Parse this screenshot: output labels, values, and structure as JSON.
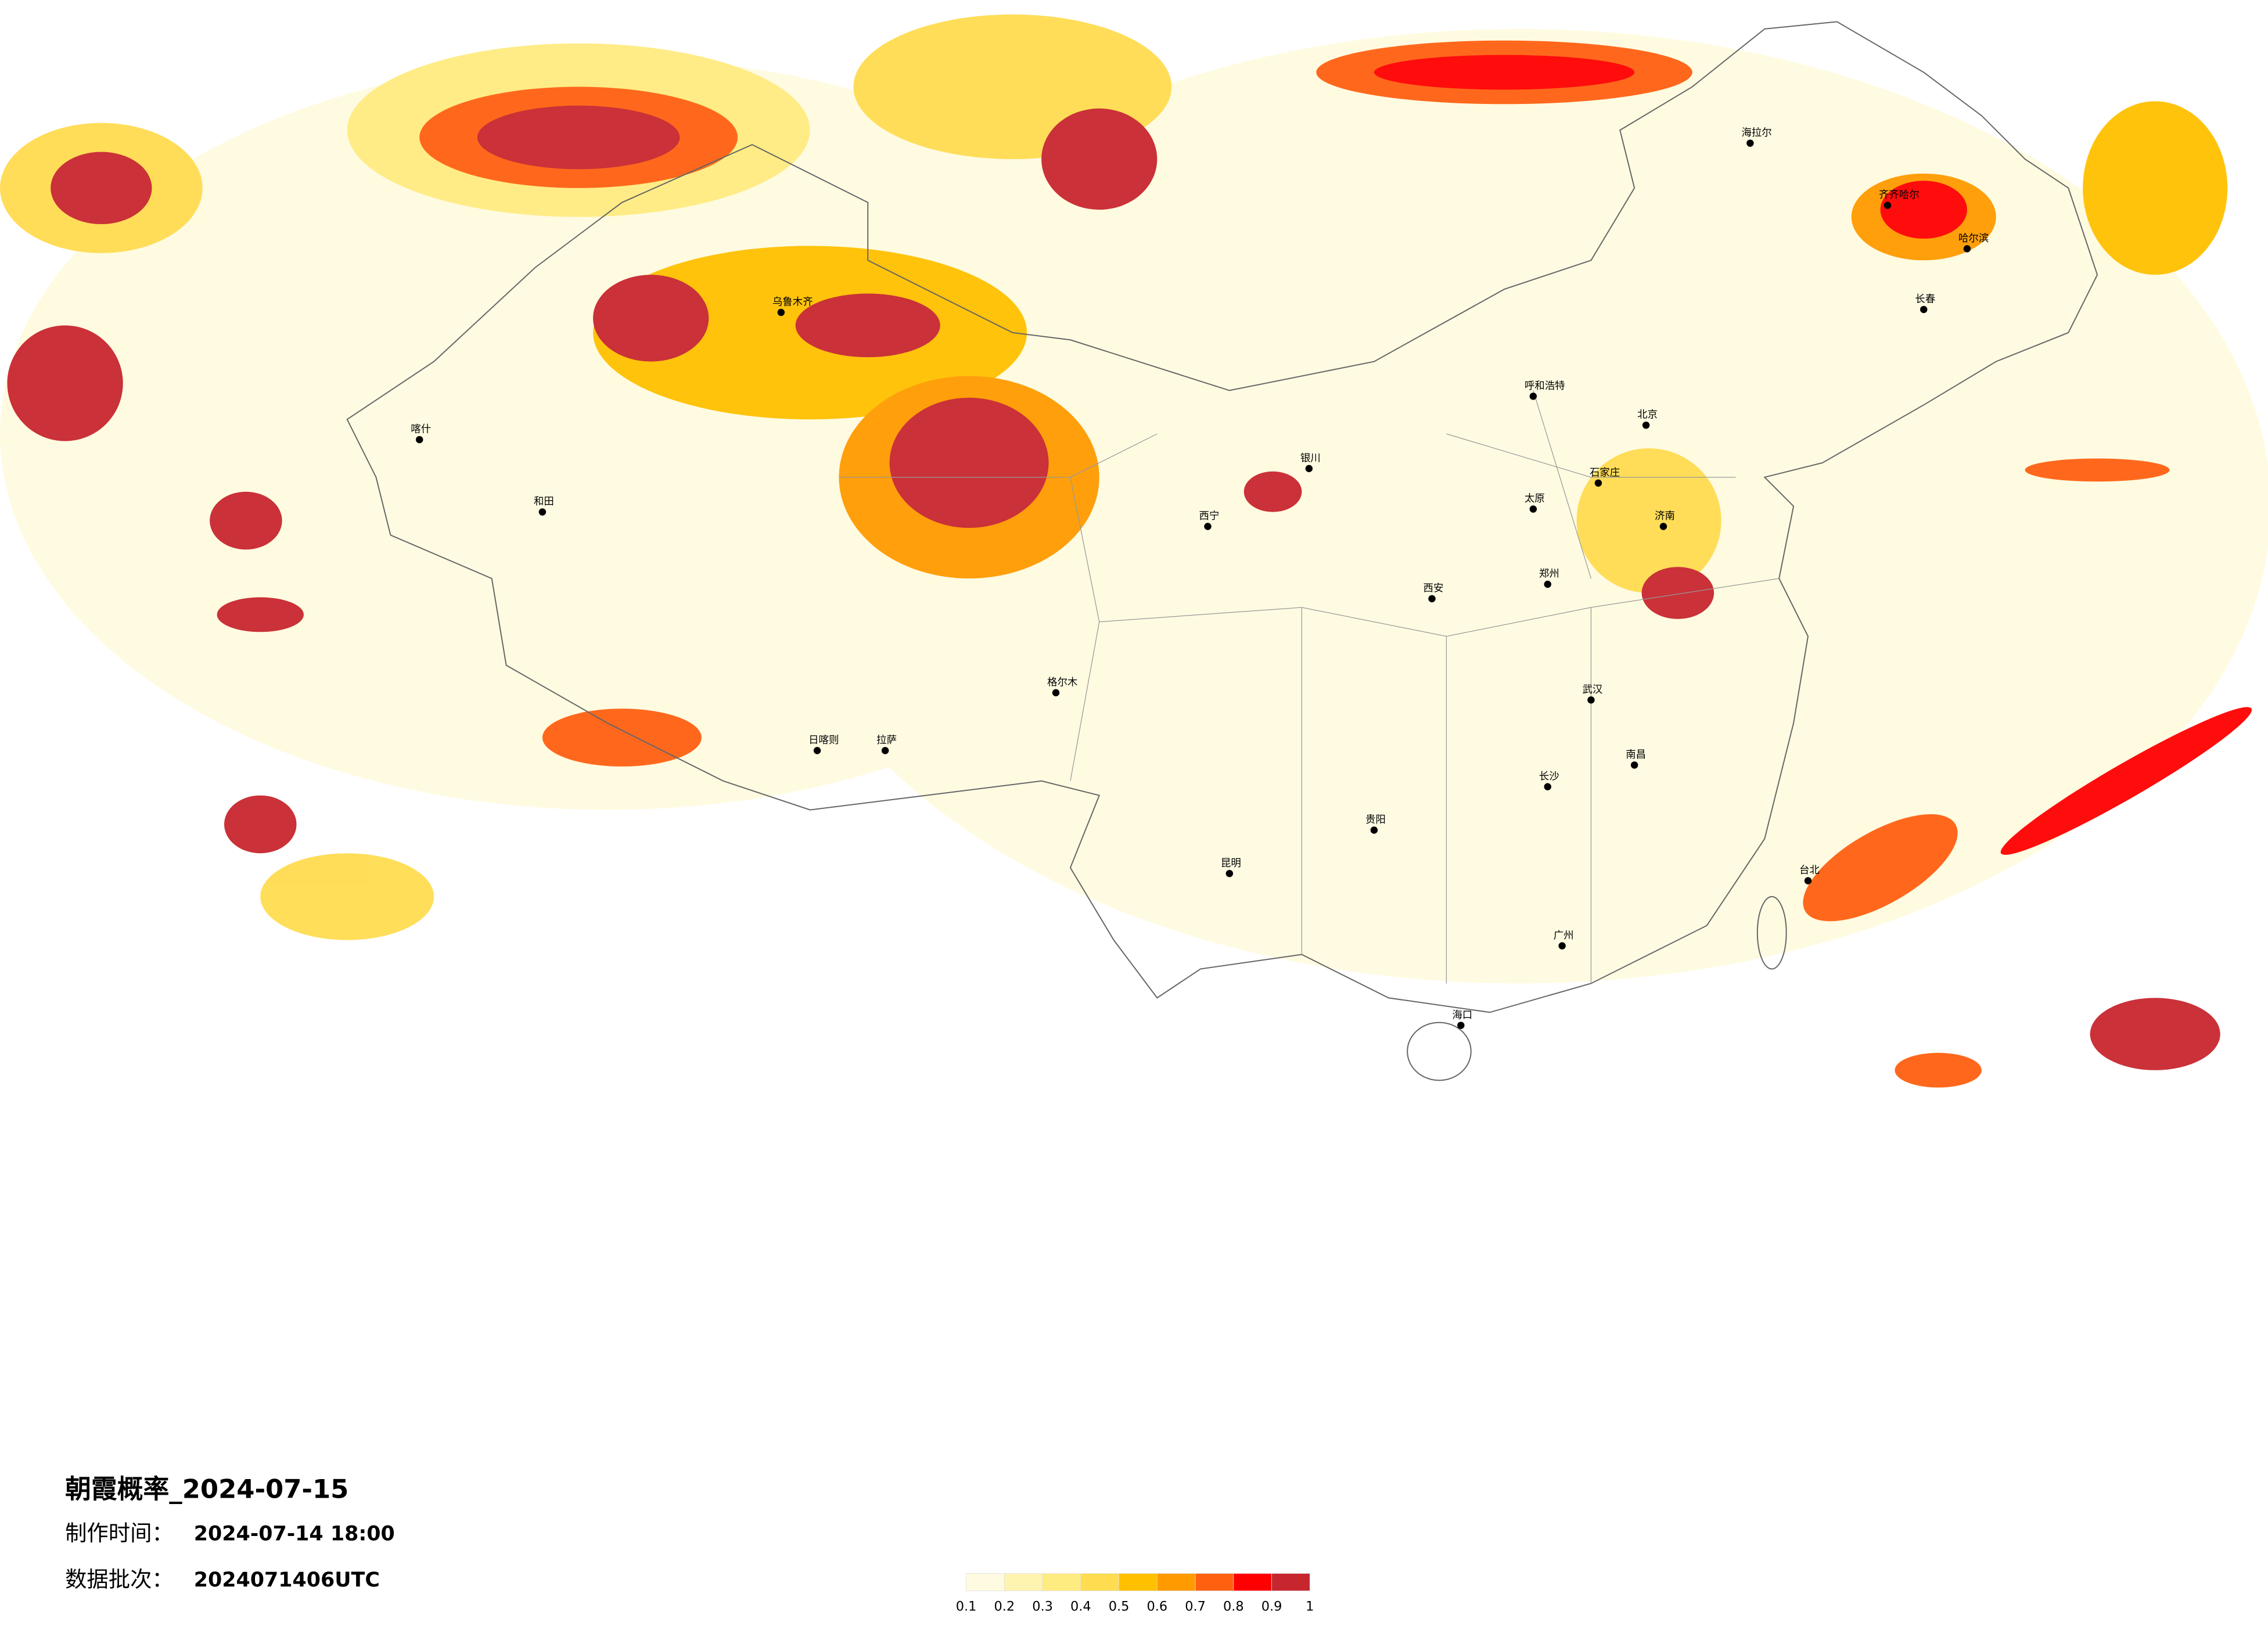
{
  "header": {
    "title": "朝霞概率_2024-07-15",
    "made_label": "制作时间：",
    "made_time": "2024-07-14 18:00",
    "batch_label": "数据批次：",
    "batch": "2024071406UTC"
  },
  "legend": {
    "ticks": [
      0.1,
      0.2,
      0.3,
      0.4,
      0.5,
      0.6,
      0.7,
      0.8,
      0.9,
      1
    ],
    "colors": [
      "#fffbe0",
      "#fff3b0",
      "#ffec80",
      "#ffdc50",
      "#ffc000",
      "#ff9a00",
      "#ff6010",
      "#ff0000",
      "#c8262e"
    ]
  },
  "cities": [
    "海拉尔",
    "齐齐哈尔",
    "哈尔滨",
    "长春",
    "呼和浩特",
    "北京",
    "石家庄",
    "太原",
    "济南",
    "郑州",
    "西安",
    "武汉",
    "南昌",
    "长沙",
    "贵阳",
    "昆明",
    "广州",
    "海口",
    "台北",
    "乌鲁木齐",
    "拉萨",
    "喀什",
    "和田",
    "日喀则",
    "格尔木",
    "西宁",
    "银川"
  ]
}
